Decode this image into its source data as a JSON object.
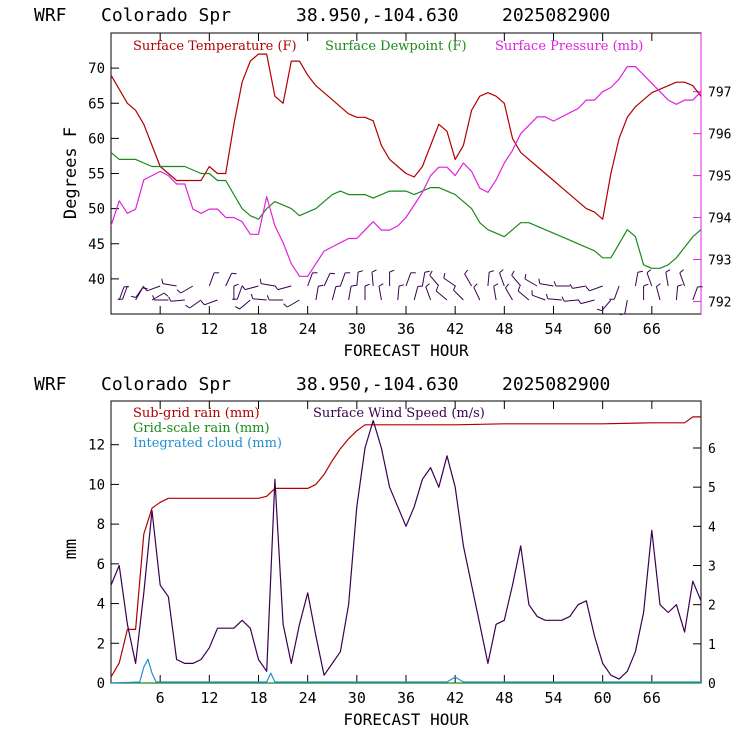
{
  "panels": [
    {
      "title_parts": [
        "WRF",
        "Colorado Spr",
        "38.950,-104.630",
        "2025082900"
      ],
      "xlabel": "FORECAST HOUR",
      "ylabel_left": "Degrees F",
      "legend": [
        {
          "label": "Surface Temperature (F)",
          "color": "#b00000"
        },
        {
          "label": "Surface Dewpoint (F)",
          "color": "#1a8a1a"
        },
        {
          "label": "Surface Pressure (mb)",
          "color": "#e020e0"
        }
      ]
    },
    {
      "title_parts": [
        "WRF",
        "Colorado Spr",
        "38.950,-104.630",
        "2025082900"
      ],
      "xlabel": "FORECAST HOUR",
      "ylabel_left": "mm",
      "legend": [
        {
          "label": "Sub-grid rain (mm)",
          "color": "#b00000"
        },
        {
          "label": "Surface Wind Speed (m/s)",
          "color": "#3a0050"
        },
        {
          "label": "Grid-scale rain (mm)",
          "color": "#1a8a1a"
        },
        {
          "label": "Integrated cloud (mm)",
          "color": "#2090d0"
        }
      ]
    }
  ],
  "chart_data": [
    {
      "type": "line",
      "title": "WRF Colorado Spr 38.950,-104.630 2025082900",
      "xlabel": "FORECAST HOUR",
      "ylabel": "Degrees F",
      "xlim": [
        0,
        72
      ],
      "xticks": [
        6,
        12,
        18,
        24,
        30,
        36,
        42,
        48,
        54,
        60,
        66
      ],
      "ylim": [
        35,
        75
      ],
      "yticks": [
        40,
        45,
        50,
        55,
        60,
        65,
        70
      ],
      "y2lim": [
        791.7,
        798.4
      ],
      "y2ticks": [
        792,
        793,
        794,
        795,
        796,
        797
      ],
      "grid": false,
      "legend_position": "top",
      "series": [
        {
          "name": "Surface Temperature (F)",
          "axis": "left",
          "color": "#b00000",
          "x": [
            0,
            1,
            2,
            3,
            4,
            5,
            6,
            7,
            8,
            9,
            10,
            11,
            12,
            13,
            14,
            15,
            16,
            17,
            18,
            19,
            20,
            21,
            22,
            23,
            24,
            25,
            26,
            27,
            28,
            29,
            30,
            31,
            32,
            33,
            34,
            35,
            36,
            37,
            38,
            39,
            40,
            41,
            42,
            43,
            44,
            45,
            46,
            47,
            48,
            49,
            50,
            51,
            52,
            53,
            54,
            55,
            56,
            57,
            58,
            59,
            60,
            61,
            62,
            63,
            64,
            65,
            66,
            67,
            68,
            69,
            70,
            71,
            72
          ],
          "values": [
            69,
            67,
            65,
            64,
            62,
            59,
            56,
            55,
            54,
            54,
            54,
            54,
            56,
            55,
            55,
            62,
            68,
            71,
            72,
            72,
            66,
            65,
            71,
            71,
            69,
            67.5,
            66.5,
            65.5,
            64.5,
            63.5,
            63,
            63,
            62.5,
            59,
            57,
            56,
            55,
            54.5,
            56,
            59,
            62,
            61,
            57,
            59,
            64,
            66,
            66.5,
            66,
            65,
            60,
            58,
            57,
            56,
            55,
            54,
            53,
            52,
            51,
            50,
            49.5,
            48.5,
            55,
            60,
            63,
            64.5,
            65.5,
            66.5,
            67,
            67.5,
            68,
            68,
            67.5,
            66
          ]
        },
        {
          "name": "Surface Dewpoint (F)",
          "axis": "left",
          "color": "#1a8a1a",
          "x": [
            0,
            1,
            2,
            3,
            4,
            5,
            6,
            7,
            8,
            9,
            10,
            11,
            12,
            13,
            14,
            15,
            16,
            17,
            18,
            19,
            20,
            21,
            22,
            23,
            24,
            25,
            26,
            27,
            28,
            29,
            30,
            31,
            32,
            33,
            34,
            35,
            36,
            37,
            38,
            39,
            40,
            41,
            42,
            43,
            44,
            45,
            46,
            47,
            48,
            49,
            50,
            51,
            52,
            53,
            54,
            55,
            56,
            57,
            58,
            59,
            60,
            61,
            62,
            63,
            64,
            65,
            66,
            67,
            68,
            69,
            70,
            71,
            72
          ],
          "values": [
            58,
            57,
            57,
            57,
            56.5,
            56,
            56,
            56,
            56,
            56,
            55.5,
            55,
            55,
            54,
            54,
            52,
            50,
            49,
            48.5,
            50,
            51,
            50.5,
            50,
            49,
            49.5,
            50,
            51,
            52,
            52.5,
            52,
            52,
            52,
            51.5,
            52,
            52.5,
            52.5,
            52.5,
            52,
            52.5,
            53,
            53,
            52.5,
            52,
            51,
            50,
            48,
            47,
            46.5,
            46,
            47,
            48,
            48,
            47.5,
            47,
            46.5,
            46,
            45.5,
            45,
            44.5,
            44,
            43,
            43,
            45,
            47,
            46,
            42,
            41.5,
            41.5,
            42,
            43,
            44.5,
            46,
            47
          ]
        },
        {
          "name": "Surface Pressure (mb)",
          "axis": "right",
          "color": "#e020e0",
          "x": [
            0,
            1,
            2,
            3,
            4,
            5,
            6,
            7,
            8,
            9,
            10,
            11,
            12,
            13,
            14,
            15,
            16,
            17,
            18,
            19,
            20,
            21,
            22,
            23,
            24,
            25,
            26,
            27,
            28,
            29,
            30,
            31,
            32,
            33,
            34,
            35,
            36,
            37,
            38,
            39,
            40,
            41,
            42,
            43,
            44,
            45,
            46,
            47,
            48,
            49,
            50,
            51,
            52,
            53,
            54,
            55,
            56,
            57,
            58,
            59,
            60,
            61,
            62,
            63,
            64,
            65,
            66,
            67,
            68,
            69,
            70,
            71,
            72
          ],
          "values": [
            793.8,
            794.4,
            794.1,
            794.2,
            794.9,
            795.0,
            795.1,
            795.0,
            794.8,
            794.8,
            794.2,
            794.1,
            794.2,
            794.2,
            794.0,
            794.0,
            793.9,
            793.6,
            793.6,
            794.5,
            793.8,
            793.4,
            792.9,
            792.6,
            792.6,
            792.9,
            793.2,
            793.3,
            793.4,
            793.5,
            793.5,
            793.7,
            793.9,
            793.7,
            793.7,
            793.8,
            794.0,
            794.3,
            794.6,
            795.0,
            795.2,
            795.2,
            795.0,
            795.3,
            795.1,
            794.7,
            794.6,
            794.9,
            795.3,
            795.6,
            796.0,
            796.2,
            796.4,
            796.4,
            796.3,
            796.4,
            796.5,
            796.6,
            796.8,
            796.8,
            797.0,
            797.1,
            797.3,
            797.6,
            797.6,
            797.4,
            797.2,
            797.0,
            796.8,
            796.7,
            796.8,
            796.8,
            797.0
          ]
        },
        {
          "name": "",
          "axis": "barbs",
          "color": "#3a0050",
          "x": [
            1,
            2,
            3,
            4,
            5,
            6,
            7,
            8,
            9,
            10,
            11,
            12,
            13,
            14,
            15,
            16,
            17,
            18,
            19,
            20,
            21,
            22,
            23,
            24,
            25,
            26,
            27,
            28,
            29,
            30,
            31,
            32,
            33,
            34,
            35,
            36,
            37,
            38,
            39,
            40,
            41,
            42,
            43,
            44,
            45,
            46,
            47,
            48,
            49,
            50,
            51,
            52,
            53,
            54,
            55,
            56,
            57,
            58,
            59,
            60,
            61,
            62,
            63,
            64,
            65,
            66,
            67,
            68,
            69,
            70,
            71
          ],
          "values": [
            20,
            200,
            30,
            215,
            60,
            250,
            270,
            280,
            265,
            240,
            235,
            20,
            250,
            25,
            0,
            200,
            230,
            255,
            275,
            280,
            270,
            255,
            240,
            20,
            10,
            25,
            15,
            20,
            10,
            5,
            0,
            355,
            350,
            0,
            5,
            20,
            15,
            10,
            340,
            320,
            310,
            305,
            315,
            330,
            335,
            5,
            350,
            340,
            330,
            320,
            310,
            300,
            290,
            280,
            275,
            270,
            265,
            260,
            255,
            250,
            220,
            200,
            190,
            10,
            0,
            340,
            345,
            350,
            5,
            340,
            20
          ]
        }
      ]
    },
    {
      "type": "line",
      "title": "WRF Colorado Spr 38.950,-104.630 2025082900",
      "xlabel": "FORECAST HOUR",
      "ylabel": "mm",
      "xlim": [
        0,
        72
      ],
      "xticks": [
        6,
        12,
        18,
        24,
        30,
        36,
        42,
        48,
        54,
        60,
        66
      ],
      "ylim": [
        0,
        14.2
      ],
      "yticks": [
        0,
        2,
        4,
        6,
        8,
        10,
        12
      ],
      "y2lim": [
        0,
        7.2
      ],
      "y2ticks": [
        0,
        1,
        2,
        3,
        4,
        5,
        6
      ],
      "grid": false,
      "legend_position": "top",
      "series": [
        {
          "name": "Sub-grid rain (mm)",
          "axis": "left",
          "color": "#b00000",
          "x": [
            0,
            1,
            2,
            3,
            4,
            5,
            6,
            7,
            8,
            10,
            14,
            18,
            19,
            20,
            22,
            24,
            25,
            26,
            27,
            28,
            29,
            30,
            31,
            33,
            36,
            42,
            48,
            54,
            60,
            66,
            70,
            71,
            72
          ],
          "values": [
            0.3,
            1,
            2.7,
            2.7,
            7.5,
            8.8,
            9.1,
            9.3,
            9.3,
            9.3,
            9.3,
            9.3,
            9.4,
            9.8,
            9.8,
            9.8,
            10,
            10.5,
            11.2,
            11.8,
            12.3,
            12.7,
            13,
            13,
            13,
            13,
            13.05,
            13.05,
            13.05,
            13.1,
            13.1,
            13.4,
            13.4
          ]
        },
        {
          "name": "Surface Wind Speed (m/s)",
          "axis": "right",
          "color": "#3a0050",
          "x": [
            0,
            1,
            2,
            3,
            4,
            5,
            6,
            7,
            8,
            9,
            10,
            11,
            12,
            13,
            14,
            15,
            16,
            17,
            18,
            19,
            20,
            21,
            22,
            23,
            24,
            25,
            26,
            27,
            28,
            29,
            30,
            31,
            32,
            33,
            34,
            35,
            36,
            37,
            38,
            39,
            40,
            41,
            42,
            43,
            44,
            45,
            46,
            47,
            48,
            49,
            50,
            51,
            52,
            53,
            54,
            55,
            56,
            57,
            58,
            59,
            60,
            61,
            62,
            63,
            64,
            65,
            66,
            67,
            68,
            69,
            70,
            71,
            72
          ],
          "values": [
            2.5,
            3.0,
            1.5,
            0.5,
            2.3,
            4.4,
            2.5,
            2.2,
            0.6,
            0.5,
            0.5,
            0.6,
            0.9,
            1.4,
            1.4,
            1.4,
            1.6,
            1.4,
            0.6,
            0.3,
            5.2,
            1.5,
            0.5,
            1.5,
            2.3,
            1.2,
            0.2,
            0.5,
            0.8,
            2.0,
            4.5,
            6.0,
            6.7,
            6.0,
            5.0,
            4.5,
            4.0,
            4.5,
            5.2,
            5.5,
            5.0,
            5.8,
            5.0,
            3.5,
            2.5,
            1.5,
            0.5,
            1.5,
            1.6,
            2.5,
            3.5,
            2.0,
            1.7,
            1.6,
            1.6,
            1.6,
            1.7,
            2.0,
            2.1,
            1.2,
            0.5,
            0.2,
            0.1,
            0.3,
            0.8,
            1.8,
            3.9,
            2.0,
            1.8,
            2.0,
            1.3,
            2.6,
            2.1
          ]
        },
        {
          "name": "Grid-scale rain (mm)",
          "axis": "left",
          "color": "#1a8a1a",
          "x": [
            0,
            72
          ],
          "values": [
            0,
            0
          ]
        },
        {
          "name": "Integrated cloud (mm)",
          "axis": "left",
          "color": "#2090d0",
          "x": [
            0,
            3.5,
            4,
            4.5,
            5,
            5.5,
            19,
            19.5,
            20,
            41,
            42,
            43,
            72
          ],
          "values": [
            0,
            0.05,
            0.8,
            1.2,
            0.5,
            0.05,
            0.05,
            0.5,
            0.05,
            0.05,
            0.3,
            0.05,
            0.05
          ]
        }
      ]
    }
  ]
}
